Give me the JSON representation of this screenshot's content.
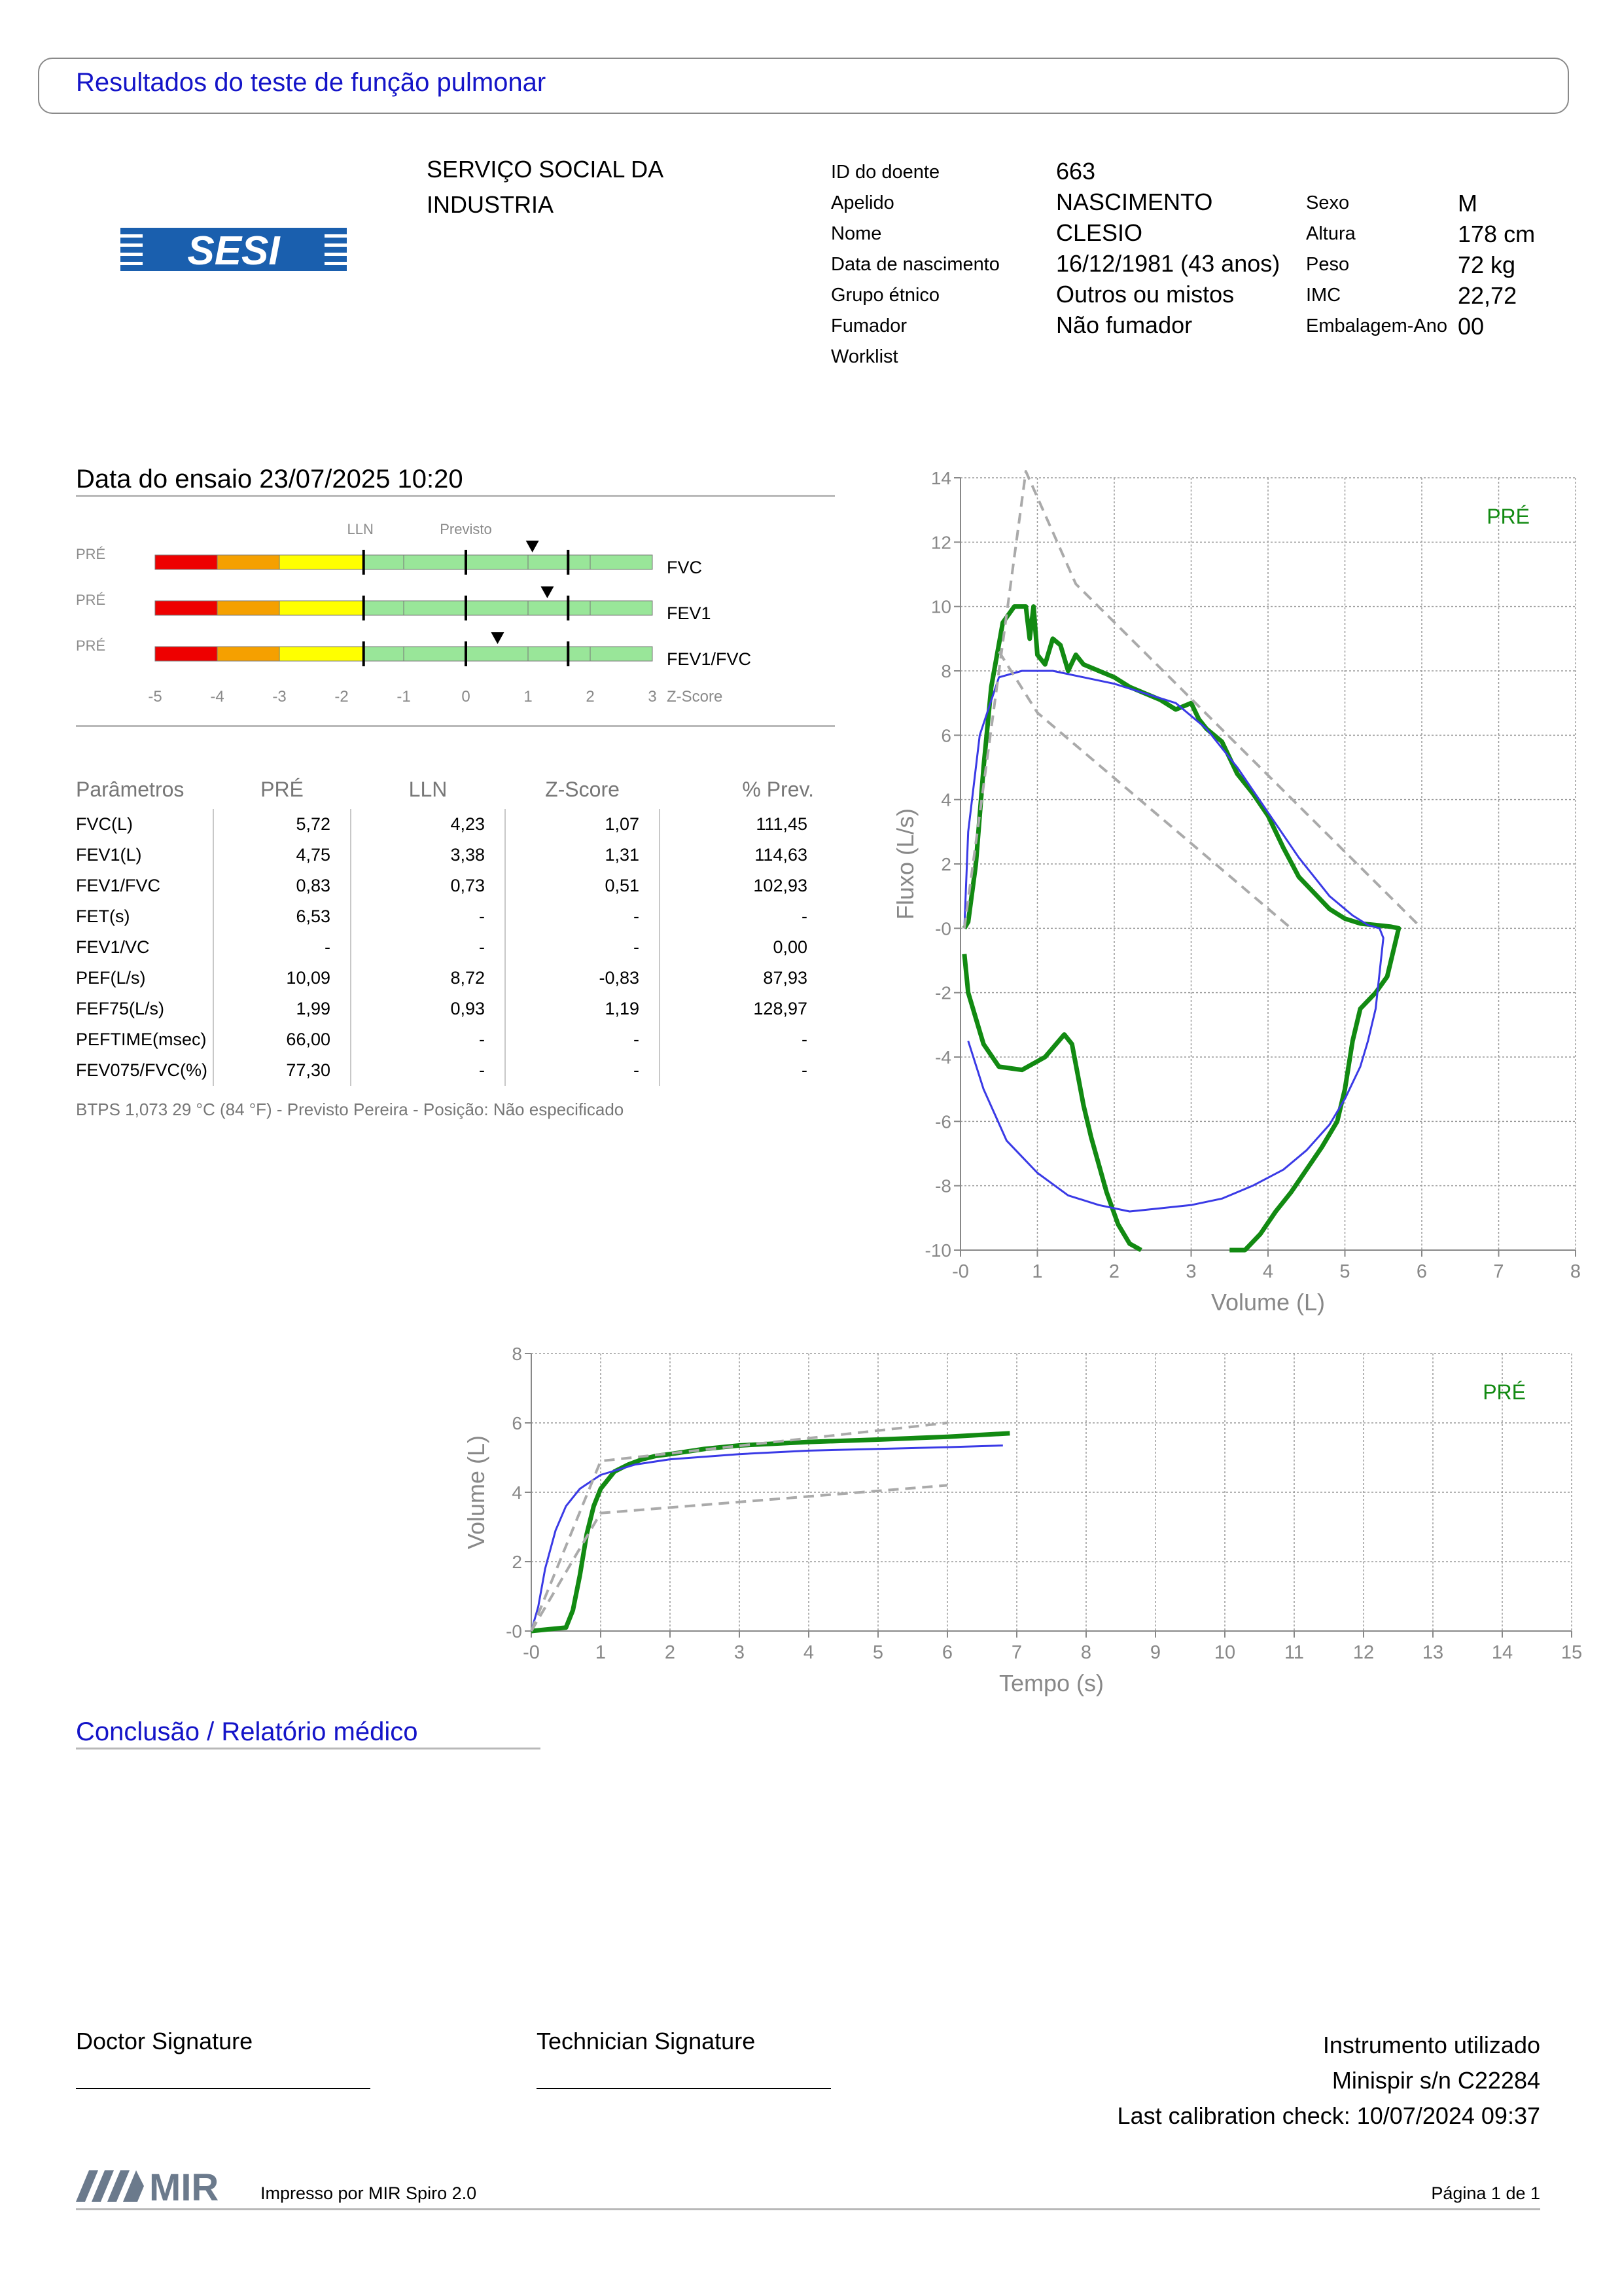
{
  "report_title": "Resultados do teste de função pulmonar",
  "institution": {
    "line1": "SERVIÇO SOCIAL DA",
    "line2": "INDUSTRIA",
    "logo_text": "SESI"
  },
  "patient": {
    "fields": [
      {
        "label": "ID do doente",
        "value": "663"
      },
      {
        "label": "Apelido",
        "value": "NASCIMENTO"
      },
      {
        "label": "Nome",
        "value": "CLESIO"
      },
      {
        "label": "Data de nascimento",
        "value": "16/12/1981 (43 anos)"
      },
      {
        "label": "Grupo étnico",
        "value": "Outros ou mistos"
      },
      {
        "label": "Fumador",
        "value": "Não fumador"
      },
      {
        "label": "Worklist",
        "value": ""
      }
    ],
    "fields2": [
      {
        "label": "Sexo",
        "value": "M"
      },
      {
        "label": "Altura",
        "value": "178 cm"
      },
      {
        "label": "Peso",
        "value": "72 kg"
      },
      {
        "label": "IMC",
        "value": "22,72"
      },
      {
        "label": "Embalagem-Ano",
        "value": "00"
      }
    ]
  },
  "test_date": "Data do ensaio 23/07/2025 10:20",
  "zscore": {
    "lln_label": "LLN",
    "pred_label": "Previsto",
    "axis_label": "Z-Score",
    "ticks": [
      "-5",
      "-4",
      "-3",
      "-2",
      "-1",
      "0",
      "1",
      "2",
      "3"
    ],
    "rows": [
      {
        "tag": "PRÉ",
        "name": "FVC",
        "z": 1.07
      },
      {
        "tag": "PRÉ",
        "name": "FEV1",
        "z": 1.31
      },
      {
        "tag": "PRÉ",
        "name": "FEV1/FVC",
        "z": 0.51
      }
    ],
    "colors": {
      "red": "#ee0000",
      "orange": "#f5a000",
      "yellow": "#ffff00",
      "green": "#99e699"
    }
  },
  "params": {
    "headers": [
      "Parâmetros",
      "PRÉ",
      "LLN",
      "Z-Score",
      "% Prev."
    ],
    "rows": [
      [
        "FVC(L)",
        "5,72",
        "4,23",
        "1,07",
        "111,45"
      ],
      [
        "FEV1(L)",
        "4,75",
        "3,38",
        "1,31",
        "114,63"
      ],
      [
        "FEV1/FVC",
        "0,83",
        "0,73",
        "0,51",
        "102,93"
      ],
      [
        "FET(s)",
        "6,53",
        "-",
        "-",
        "-"
      ],
      [
        "FEV1/VC",
        "-",
        "-",
        "-",
        "0,00"
      ],
      [
        "PEF(L/s)",
        "10,09",
        "8,72",
        "-0,83",
        "87,93"
      ],
      [
        "FEF75(L/s)",
        "1,99",
        "0,93",
        "1,19",
        "128,97"
      ],
      [
        "PEFTIME(msec)",
        "66,00",
        "-",
        "-",
        "-"
      ],
      [
        "FEV075/FVC(%)",
        "77,30",
        "-",
        "-",
        "-"
      ]
    ],
    "footnote": "BTPS 1,073 29 °C (84 °F) - Previsto Pereira - Posição: Não especificado"
  },
  "chart_data": [
    {
      "type": "line",
      "xlabel": "Volume (L)",
      "ylabel": "Fluxo (L/s)",
      "xlim": [
        0,
        8
      ],
      "ylim": [
        -10,
        14
      ],
      "xticks": [
        "-0",
        "1",
        "2",
        "3",
        "4",
        "5",
        "6",
        "7",
        "8"
      ],
      "yticks": [
        "14",
        "12",
        "10",
        "8",
        "6",
        "4",
        "2",
        "-0",
        "-2",
        "-4",
        "-6",
        "-8",
        "-10"
      ],
      "legend": "PRÉ",
      "grid": true,
      "series": [
        {
          "name": "PRÉ",
          "color": "#128a12",
          "x": [
            0.05,
            0.1,
            0.2,
            0.3,
            0.4,
            0.55,
            0.7,
            0.85,
            0.9,
            0.95,
            1.0,
            1.1,
            1.2,
            1.3,
            1.4,
            1.5,
            1.6,
            1.8,
            2.0,
            2.2,
            2.4,
            2.6,
            2.8,
            3.0,
            3.1,
            3.2,
            3.4,
            3.6,
            3.8,
            4.0,
            4.2,
            4.4,
            4.6,
            4.8,
            5.0,
            5.2,
            5.4,
            5.6,
            5.7,
            5.65,
            5.55,
            5.4,
            5.2,
            5.1,
            5.0,
            4.9,
            4.7,
            4.5,
            4.3,
            4.1,
            3.9,
            3.7,
            3.5
          ],
          "y": [
            0,
            0.2,
            2,
            5,
            7.5,
            9.5,
            10,
            10,
            9,
            10,
            8.5,
            8.2,
            9,
            8.8,
            8,
            8.5,
            8.2,
            8,
            7.8,
            7.5,
            7.3,
            7.1,
            6.8,
            7.0,
            6.5,
            6.2,
            5.8,
            4.8,
            4.2,
            3.5,
            2.5,
            1.6,
            1.1,
            0.6,
            0.3,
            0.15,
            0.1,
            0.05,
            0,
            -0.5,
            -1.5,
            -2,
            -2.5,
            -3.5,
            -5,
            -6,
            -6.8,
            -7.5,
            -8.2,
            -8.8,
            -9.5,
            -10,
            -10
          ]
        },
        {
          "name": "PRÉ",
          "color": "#128a12",
          "x": [
            0.05,
            0.1,
            0.3,
            0.5,
            0.8,
            1.1,
            1.35,
            1.45,
            1.6,
            1.7,
            1.9,
            2.05,
            2.2,
            2.35
          ],
          "y": [
            -0.8,
            -2,
            -3.6,
            -4.3,
            -4.4,
            -4.0,
            -3.3,
            -3.6,
            -5.5,
            -6.5,
            -8.2,
            -9.2,
            -9.8,
            -10
          ]
        },
        {
          "name": "PRÉ",
          "color": "#3a3ae6",
          "x": [
            0.05,
            0.1,
            0.25,
            0.5,
            0.8,
            1.2,
            1.6,
            2.0,
            2.4,
            2.8,
            3.2,
            3.6,
            4.0,
            4.4,
            4.8,
            5.1,
            5.3,
            5.45,
            5.5,
            5.4,
            5.3,
            5.2,
            5.0,
            4.8,
            4.5,
            4.2,
            3.8,
            3.4,
            3.0,
            2.6,
            2.2,
            1.8,
            1.4,
            1.0,
            0.6,
            0.3,
            0.1
          ],
          "y": [
            0,
            3,
            6,
            7.8,
            8,
            8,
            7.8,
            7.6,
            7.3,
            7.0,
            6.2,
            5.0,
            3.6,
            2.2,
            1.0,
            0.4,
            0.1,
            0,
            -0.3,
            -2.5,
            -3.5,
            -4.3,
            -5.3,
            -6.1,
            -6.9,
            -7.5,
            -8.0,
            -8.4,
            -8.6,
            -8.7,
            -8.8,
            -8.6,
            -8.3,
            -7.6,
            -6.6,
            -5.0,
            -3.5
          ]
        },
        {
          "name": "Previsto",
          "color": "#aaaaaa",
          "dash": true,
          "x": [
            0.05,
            0.85,
            1.5,
            6.0
          ],
          "y": [
            0,
            14.2,
            10.7,
            0
          ]
        },
        {
          "name": "Previsto",
          "color": "#aaaaaa",
          "dash": true,
          "x": [
            0.5,
            1.0,
            4.3
          ],
          "y": [
            8.6,
            6.7,
            0
          ]
        }
      ]
    },
    {
      "type": "line",
      "xlabel": "Tempo (s)",
      "ylabel": "Volume (L)",
      "xlim": [
        0,
        15
      ],
      "ylim": [
        0,
        8
      ],
      "xticks": [
        "-0",
        "1",
        "2",
        "3",
        "4",
        "5",
        "6",
        "7",
        "8",
        "9",
        "10",
        "11",
        "12",
        "13",
        "14",
        "15"
      ],
      "yticks": [
        "8",
        "6",
        "4",
        "2",
        "-0"
      ],
      "legend": "PRÉ",
      "grid": true,
      "series": [
        {
          "name": "PRÉ",
          "color": "#128a12",
          "x": [
            0,
            0.5,
            0.6,
            0.7,
            0.8,
            0.9,
            1.0,
            1.2,
            1.4,
            1.6,
            1.8,
            2.0,
            2.5,
            3,
            4,
            5,
            6,
            6.9
          ],
          "y": [
            0,
            0.1,
            0.6,
            1.6,
            2.8,
            3.6,
            4.1,
            4.6,
            4.8,
            4.95,
            5.05,
            5.1,
            5.25,
            5.35,
            5.45,
            5.52,
            5.6,
            5.7
          ]
        },
        {
          "name": "PRÉ",
          "color": "#3a3ae6",
          "x": [
            0,
            0.1,
            0.2,
            0.35,
            0.5,
            0.7,
            1.0,
            1.5,
            2,
            3,
            4,
            5,
            6,
            6.8
          ],
          "y": [
            0,
            0.7,
            1.8,
            2.9,
            3.6,
            4.1,
            4.5,
            4.8,
            4.95,
            5.1,
            5.2,
            5.25,
            5.3,
            5.35
          ]
        },
        {
          "name": "Previsto",
          "color": "#aaaaaa",
          "dash": true,
          "x": [
            0,
            1.0,
            6.0
          ],
          "y": [
            0,
            4.9,
            6.0
          ]
        },
        {
          "name": "Previsto",
          "color": "#aaaaaa",
          "dash": true,
          "x": [
            0,
            1.0,
            6.0
          ],
          "y": [
            0,
            3.4,
            4.2
          ]
        }
      ]
    }
  ],
  "conclusion_title": "Conclusão / Relatório médico",
  "signatures": {
    "doctor": "Doctor Signature",
    "technician": "Technician Signature"
  },
  "instrument": {
    "title": "Instrumento utilizado",
    "model": "Minispir s/n C22284",
    "calibration": "Last calibration check: 10/07/2024 09:37"
  },
  "footer": {
    "logo": "MIR",
    "printed_by": "Impresso por MIR Spiro 2.0",
    "page": "Página 1 de 1"
  }
}
